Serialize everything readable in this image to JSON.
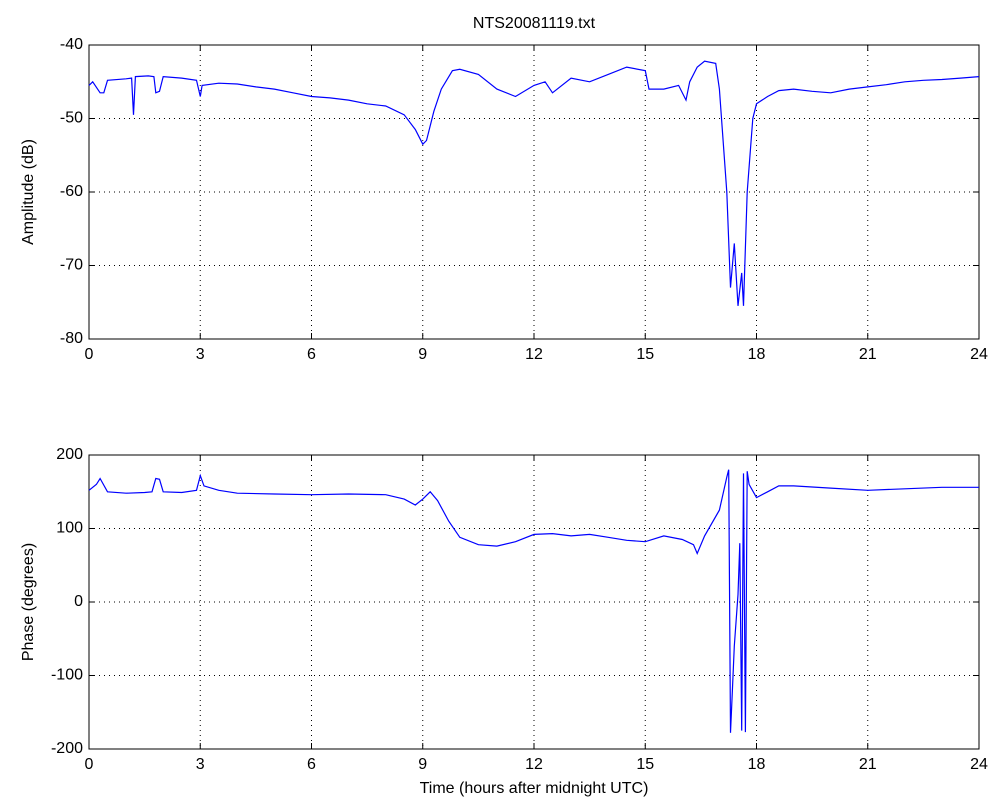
{
  "chart_data": [
    {
      "type": "line",
      "title": "NTS20081119.txt",
      "ylabel": "Amplitude (dB)",
      "x": [
        0,
        0.1,
        0.3,
        0.4,
        0.5,
        1.0,
        1.15,
        1.2,
        1.25,
        1.6,
        1.75,
        1.8,
        1.9,
        2.0,
        2.5,
        2.9,
        3.0,
        3.05,
        3.5,
        4,
        4.5,
        5,
        5.5,
        6,
        6.5,
        7,
        7.5,
        8,
        8.5,
        8.8,
        9.0,
        9.1,
        9.3,
        9.5,
        9.8,
        10,
        10.5,
        11,
        11.5,
        12,
        12.3,
        12.5,
        13,
        13.5,
        14,
        14.5,
        15,
        15.1,
        15.5,
        15.9,
        16.1,
        16.2,
        16.4,
        16.6,
        16.9,
        17.0,
        17.2,
        17.3,
        17.4,
        17.5,
        17.6,
        17.65,
        17.75,
        17.9,
        18.0,
        18.3,
        18.6,
        19,
        19.5,
        20,
        20.5,
        21,
        21.5,
        22,
        22.5,
        23,
        23.5,
        24
      ],
      "color": "#0000ff",
      "values": [
        -45.5,
        -45,
        -46.5,
        -46.5,
        -44.8,
        -44.6,
        -44.5,
        -49.5,
        -44.3,
        -44.2,
        -44.3,
        -46.5,
        -46.3,
        -44.3,
        -44.5,
        -44.8,
        -47,
        -45.5,
        -45.2,
        -45.3,
        -45.7,
        -46,
        -46.5,
        -47,
        -47.2,
        -47.5,
        -48,
        -48.3,
        -49.5,
        -51.5,
        -53.5,
        -53,
        -49,
        -46,
        -43.5,
        -43.3,
        -44,
        -46,
        -47,
        -45.5,
        -45,
        -46.5,
        -44.5,
        -45,
        -44,
        -43,
        -43.5,
        -46,
        -46,
        -45.5,
        -47.5,
        -45,
        -43,
        -42.2,
        -42.5,
        -46,
        -60,
        -73,
        -67,
        -75.5,
        -71,
        -75.5,
        -60,
        -50,
        -48,
        -47,
        -46.2,
        -46,
        -46.3,
        -46.5,
        -46,
        -45.7,
        -45.4,
        -45,
        -44.8,
        -44.7,
        -44.5,
        -44.3
      ],
      "xlim": [
        0,
        24
      ],
      "xticks": [
        0,
        3,
        6,
        9,
        12,
        15,
        18,
        21,
        24
      ],
      "ylim": [
        -80,
        -40
      ],
      "yticks": [
        -80,
        -70,
        -60,
        -50,
        -40
      ],
      "grid": true
    },
    {
      "type": "line",
      "ylabel": "Phase (degrees)",
      "xlabel": "Time (hours after midnight UTC)",
      "x": [
        0,
        0.2,
        0.3,
        0.5,
        1,
        1.5,
        1.7,
        1.8,
        1.9,
        2.0,
        2.5,
        2.9,
        3.0,
        3.1,
        3.5,
        4,
        5,
        6,
        7,
        8,
        8.5,
        8.8,
        9.0,
        9.2,
        9.4,
        9.7,
        10,
        10.5,
        11,
        11.5,
        12,
        12.5,
        13,
        13.5,
        14,
        14.5,
        15,
        15.5,
        16,
        16.3,
        16.4,
        16.6,
        17,
        17.2,
        17.25,
        17.3,
        17.35,
        17.4,
        17.5,
        17.55,
        17.6,
        17.65,
        17.7,
        17.75,
        17.8,
        18,
        18.3,
        18.6,
        19,
        20,
        21,
        22,
        23,
        24
      ],
      "color": "#0000ff",
      "values": [
        152,
        160,
        168,
        150,
        148,
        149,
        150,
        168,
        167,
        150,
        149,
        152,
        172,
        158,
        152,
        148,
        147,
        146,
        147,
        146,
        140,
        132,
        140,
        150,
        138,
        110,
        88,
        78,
        76,
        82,
        92,
        93,
        90,
        92,
        88,
        84,
        82,
        90,
        85,
        78,
        66,
        90,
        125,
        170,
        180,
        -178,
        -120,
        -60,
        10,
        80,
        -175,
        175,
        -177,
        178,
        160,
        142,
        150,
        158,
        158,
        155,
        152,
        154,
        156,
        156
      ],
      "xlim": [
        0,
        24
      ],
      "xticks": [
        0,
        3,
        6,
        9,
        12,
        15,
        18,
        21,
        24
      ],
      "ylim": [
        -200,
        200
      ],
      "yticks": [
        -200,
        -100,
        0,
        100,
        200
      ],
      "grid": true
    }
  ]
}
